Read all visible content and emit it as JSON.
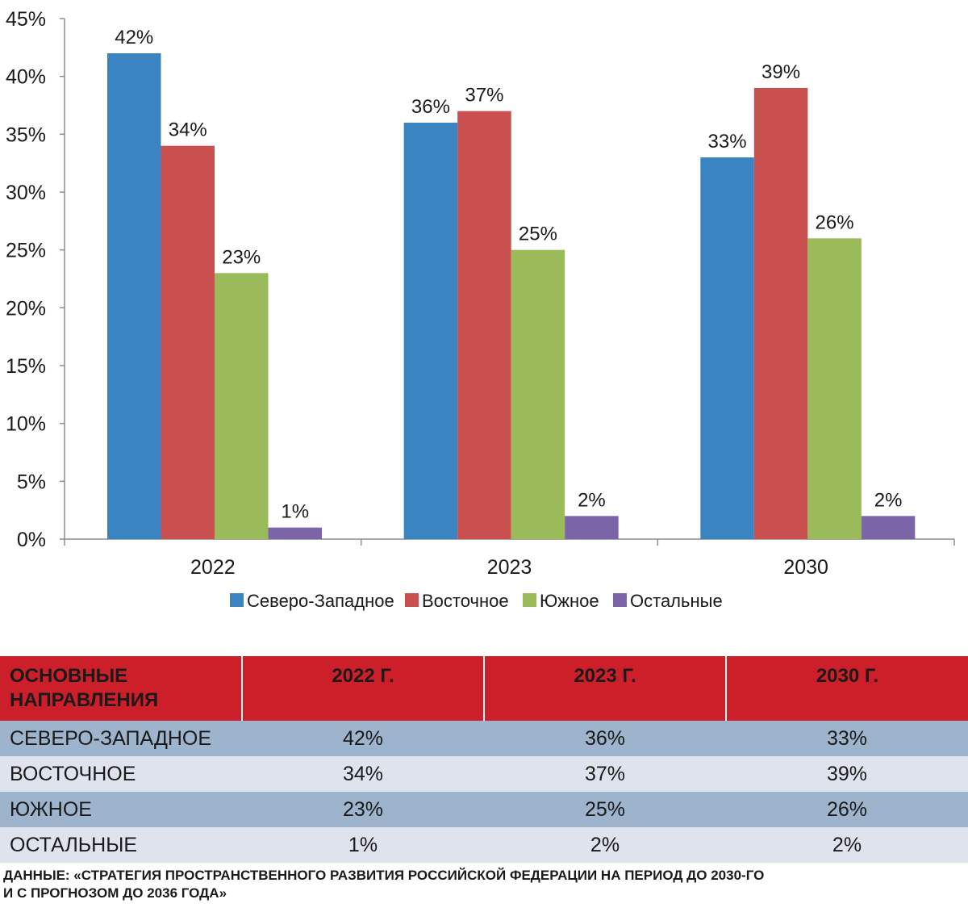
{
  "chart_data": {
    "type": "bar",
    "categories": [
      "2022",
      "2023",
      "2030"
    ],
    "series": [
      {
        "name": "Северо-Западное",
        "values": [
          42,
          36,
          33
        ],
        "color": "#3a84c1",
        "labels": [
          "42%",
          "36%",
          "33%"
        ]
      },
      {
        "name": "Восточное",
        "values": [
          34,
          37,
          39
        ],
        "color": "#c9504f",
        "labels": [
          "34%",
          "37%",
          "39%"
        ]
      },
      {
        "name": "Южное",
        "values": [
          23,
          25,
          26
        ],
        "color": "#9bba59",
        "labels": [
          "23%",
          "25%",
          "26%"
        ]
      },
      {
        "name": "Остальные",
        "values": [
          1,
          2,
          2
        ],
        "color": "#7b65a8",
        "labels": [
          "1%",
          "2%",
          "2%"
        ]
      }
    ],
    "y_ticks": [
      "0%",
      "5%",
      "10%",
      "15%",
      "20%",
      "25%",
      "30%",
      "35%",
      "40%",
      "45%"
    ],
    "ylim": [
      0,
      45
    ],
    "grid": false,
    "legend_position": "bottom"
  },
  "table": {
    "headers": [
      "ОСНОВНЫЕ НАПРАВЛЕНИЯ",
      "2022 Г.",
      "2023 Г.",
      "2030 Г."
    ],
    "rows": [
      [
        "СЕВЕРО-ЗАПАДНОЕ",
        "42%",
        "36%",
        "33%"
      ],
      [
        "ВОСТОЧНОЕ",
        "34%",
        "37%",
        "39%"
      ],
      [
        "ЮЖНОЕ",
        "23%",
        "25%",
        "26%"
      ],
      [
        "ОСТАЛЬНЫЕ",
        "1%",
        "2%",
        "2%"
      ]
    ],
    "header_color": "#cc1f29"
  },
  "source_note": {
    "line1": "ДАННЫЕ: «СТРАТЕГИЯ ПРОСТРАНСТВЕННОГО РАЗВИТИЯ РОССИЙСКОЙ ФЕДЕРАЦИИ НА ПЕРИОД ДО 2030-ГО",
    "line2": "И С ПРОГНОЗОМ ДО 2036 ГОДА»"
  }
}
